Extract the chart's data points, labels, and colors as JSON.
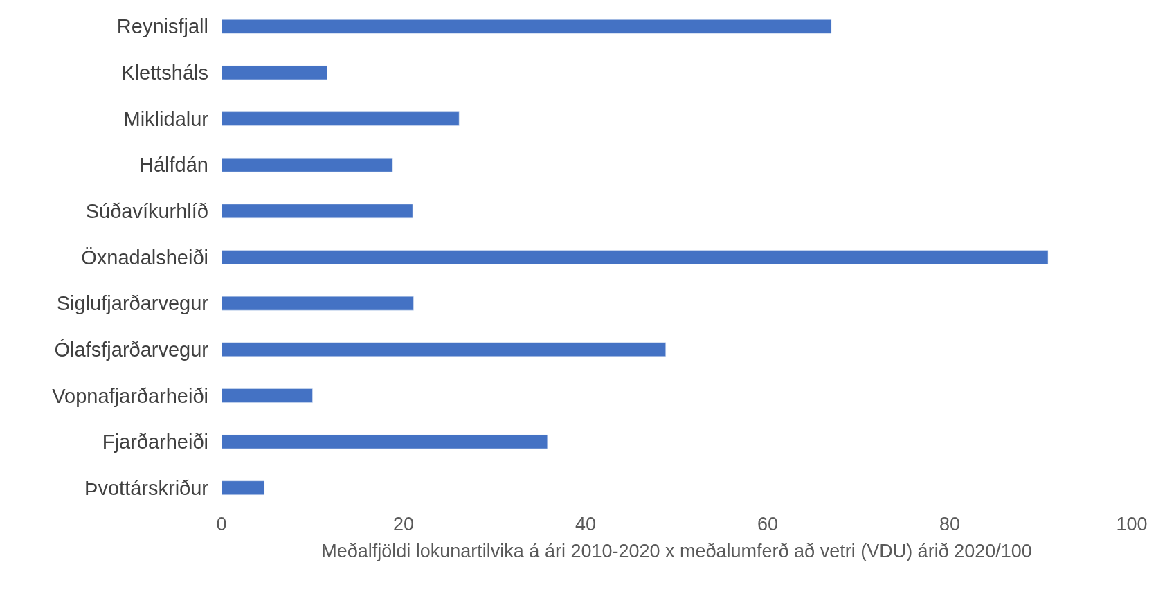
{
  "chart_data": {
    "type": "bar",
    "orientation": "horizontal",
    "xlabel": "Meðalfjöldi lokunartilvika á ári 2010-2020 x meðalumferð að vetri (VDU) árið 2020/100",
    "categories": [
      "Reynisfjall",
      "Klettsháls",
      "Miklidalur",
      "Hálfdán",
      "Súðavíkurhlíð",
      "Öxnadalsheiði",
      "Siglufjarðarvegur",
      "Ólafsfjarðarvegur",
      "Vopnafjarðarheiði",
      "Fjarðarheiði",
      "Þvottárskriður"
    ],
    "values": [
      67.0,
      11.6,
      26.1,
      18.8,
      21.0,
      90.8,
      21.1,
      48.8,
      10.0,
      35.8,
      4.7
    ],
    "color": "#4472c4",
    "xlim": [
      0,
      100
    ],
    "xticks": [
      0,
      20,
      40,
      60,
      80,
      100
    ],
    "grid": "x"
  }
}
